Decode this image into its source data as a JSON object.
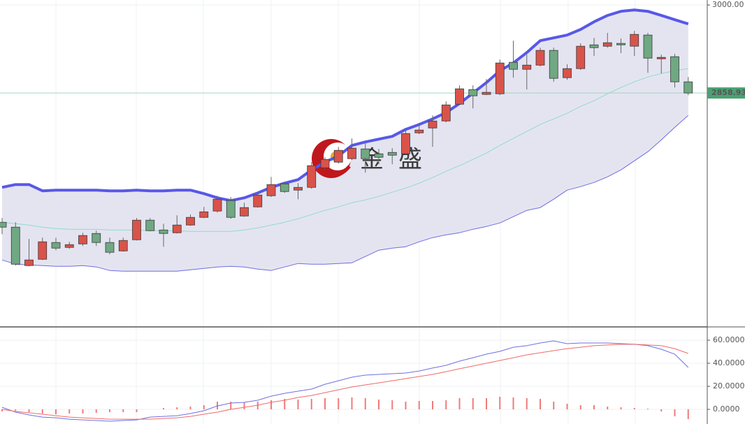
{
  "chart_data": [
    {
      "type": "candlestick",
      "ylim": [
        2485,
        3008
      ],
      "yticks": [
        {
          "value": 3000,
          "label": "3000.00"
        }
      ],
      "last_price": {
        "value": 2858.936,
        "label": "2858.936"
      },
      "watermark": [
        "金",
        "盛"
      ],
      "up_color": "#d9534a",
      "down_color": "#6fa882",
      "open": [
        2651.6,
        2643.8,
        2582.2,
        2592.3,
        2619.2,
        2611.3,
        2616.9,
        2633.7,
        2619.2,
        2605.7,
        2623.6,
        2655.0,
        2639.3,
        2634.8,
        2647.2,
        2659.5,
        2669.6,
        2686.4,
        2661.7,
        2676.3,
        2694.2,
        2713.2,
        2703.2,
        2707.6,
        2739.0,
        2748.0,
        2753.6,
        2769.2,
        2761.4,
        2763.6,
        2761.4,
        2795.0,
        2802.8,
        2814.0,
        2840.9,
        2864.4,
        2856.6,
        2857.7,
        2908.1,
        2896.9,
        2903.6,
        2927.2,
        2883.5,
        2898.0,
        2936.1,
        2933.9,
        2938.4,
        2933.9,
        2951.8,
        2913.7,
        2917.1,
        2876.8
      ],
      "high": [
        2658.4,
        2651.6,
        2624.8,
        2627.0,
        2627.0,
        2620.3,
        2634.8,
        2638.2,
        2627.0,
        2627.0,
        2658.4,
        2658.4,
        2649.4,
        2662.8,
        2664.0,
        2676.3,
        2694.2,
        2692.0,
        2683.0,
        2699.8,
        2724.4,
        2716.6,
        2714.4,
        2748.0,
        2755.8,
        2772.6,
        2786.0,
        2778.2,
        2769.2,
        2770.4,
        2799.5,
        2810.7,
        2823.0,
        2845.4,
        2871.2,
        2871.2,
        2881.2,
        2912.6,
        2942.8,
        2920.4,
        2931.6,
        2931.6,
        2904.8,
        2938.4,
        2947.3,
        2955.2,
        2946.2,
        2958.5,
        2955.2,
        2920.4,
        2921.6,
        2884.6
      ],
      "low": [
        2632.6,
        2582.2,
        2581.1,
        2591.2,
        2606.8,
        2609.1,
        2613.6,
        2613.6,
        2600.1,
        2604.6,
        2622.5,
        2637.1,
        2612.4,
        2633.7,
        2646.0,
        2658.4,
        2667.3,
        2657.2,
        2660.6,
        2675.2,
        2692.0,
        2698.7,
        2688.6,
        2705.4,
        2736.8,
        2745.7,
        2751.3,
        2731.2,
        2744.6,
        2744.6,
        2759.2,
        2792.8,
        2772.6,
        2811.8,
        2839.8,
        2834.2,
        2855.5,
        2855.5,
        2883.5,
        2864.4,
        2901.4,
        2876.8,
        2880.1,
        2895.8,
        2918.2,
        2931.6,
        2922.7,
        2918.2,
        2891.3,
        2890.2,
        2867.8,
        2855.5
      ],
      "close": [
        2643.8,
        2584.4,
        2591.2,
        2620.3,
        2610.2,
        2615.8,
        2630.4,
        2619.2,
        2603.5,
        2622.5,
        2655.0,
        2638.2,
        2633.7,
        2647.2,
        2659.5,
        2668.4,
        2688.6,
        2659.5,
        2675.2,
        2695.3,
        2712.1,
        2700.9,
        2707.6,
        2742.4,
        2752.4,
        2767.0,
        2770.4,
        2753.6,
        2755.8,
        2759.2,
        2793.9,
        2799.5,
        2814.0,
        2839.8,
        2865.6,
        2854.4,
        2860.0,
        2907.0,
        2896.9,
        2903.6,
        2927.2,
        2882.4,
        2898.0,
        2933.9,
        2931.6,
        2939.5,
        2936.1,
        2952.9,
        2914.8,
        2916.0,
        2876.8,
        2858.9
      ],
      "bands": {
        "fill": "#e4e4f1",
        "upper": {
          "color": "#5858e8",
          "values": [
            2707.6,
            2712.1,
            2712.1,
            2702.0,
            2703.2,
            2703.2,
            2703.2,
            2703.2,
            2702.0,
            2702.0,
            2703.2,
            2702.0,
            2702.0,
            2703.2,
            2703.2,
            2697.6,
            2690.8,
            2686.4,
            2690.8,
            2698.7,
            2707.6,
            2714.4,
            2720.0,
            2735.6,
            2748.0,
            2758.0,
            2774.8,
            2780.4,
            2784.9,
            2789.4,
            2800.6,
            2808.4,
            2817.4,
            2827.5,
            2842.0,
            2858.8,
            2875.6,
            2894.7,
            2907.0,
            2923.8,
            2942.8,
            2947.3,
            2951.8,
            2960.8,
            2973.1,
            2983.2,
            2989.9,
            2992.1,
            2989.9,
            2983.2,
            2976.4,
            2969.7
          ]
        },
        "middle": {
          "color": "#8fdcc6",
          "values": [
            2651.6,
            2649.4,
            2647.2,
            2643.8,
            2641.6,
            2640.4,
            2640.4,
            2640.4,
            2639.3,
            2639.3,
            2639.3,
            2638.2,
            2638.2,
            2638.2,
            2637.1,
            2637.1,
            2637.1,
            2637.1,
            2639.3,
            2642.7,
            2647.2,
            2651.6,
            2657.2,
            2664.0,
            2670.7,
            2676.3,
            2683.0,
            2687.5,
            2693.1,
            2699.8,
            2706.5,
            2714.4,
            2723.3,
            2733.4,
            2742.4,
            2752.4,
            2762.5,
            2774.8,
            2786.0,
            2797.2,
            2808.4,
            2817.4,
            2826.4,
            2837.6,
            2846.5,
            2857.7,
            2867.8,
            2876.8,
            2884.6,
            2890.2,
            2894.7,
            2898.0
          ]
        },
        "lower": {
          "color": "#6e6ee0",
          "values": [
            2591.2,
            2584.4,
            2583.3,
            2582.2,
            2581.1,
            2581.1,
            2582.2,
            2580.0,
            2574.4,
            2573.2,
            2573.2,
            2573.2,
            2573.2,
            2573.2,
            2575.5,
            2577.7,
            2580.0,
            2581.1,
            2580.0,
            2576.6,
            2574.4,
            2580.0,
            2585.6,
            2584.4,
            2584.4,
            2585.6,
            2586.7,
            2596.8,
            2606.8,
            2610.2,
            2612.4,
            2620.3,
            2627.0,
            2631.5,
            2634.8,
            2640.4,
            2644.9,
            2650.5,
            2660.6,
            2670.7,
            2675.2,
            2688.6,
            2703.2,
            2708.8,
            2715.5,
            2724.4,
            2735.6,
            2750.2,
            2764.8,
            2783.8,
            2804.0,
            2823.0
          ]
        }
      }
    },
    {
      "type": "macd",
      "ylim": [
        -12.7,
        70.3
      ],
      "yticks": [
        {
          "value": 60,
          "label": "60.0000"
        },
        {
          "value": 40,
          "label": "40.0000"
        },
        {
          "value": 20,
          "label": "20.0000"
        },
        {
          "value": 0,
          "label": "0.0000"
        }
      ],
      "series": [
        {
          "color": "#6f6fe0",
          "values": [
            1.8,
            -2.4,
            -4.8,
            -6.7,
            -7.3,
            -8.5,
            -9.1,
            -9.7,
            -10.3,
            -9.7,
            -9.1,
            -6.7,
            -6.1,
            -5.5,
            -3.6,
            -1.2,
            3.0,
            5.5,
            6.1,
            7.9,
            11.5,
            13.9,
            15.8,
            17.6,
            21.8,
            24.8,
            27.9,
            29.7,
            30.3,
            30.9,
            31.5,
            33.3,
            35.8,
            38.2,
            41.8,
            44.8,
            47.9,
            50.3,
            53.9,
            55.2,
            57.6,
            59.4,
            57.0,
            57.6,
            57.6,
            57.6,
            57.0,
            56.4,
            55.2,
            52.1,
            47.9,
            36.4
          ]
        },
        {
          "color": "#f06a6a",
          "values": [
            0,
            -1.8,
            -3.0,
            -4.2,
            -5.5,
            -6.7,
            -7.3,
            -7.9,
            -8.5,
            -8.5,
            -8.5,
            -8.5,
            -7.9,
            -7.3,
            -6.1,
            -4.2,
            -2.4,
            0,
            1.8,
            3.6,
            6.1,
            7.9,
            10.3,
            12.1,
            14.5,
            17.0,
            19.4,
            21.2,
            23.0,
            24.8,
            26.7,
            28.5,
            30.3,
            32.7,
            35.2,
            37.6,
            40.0,
            42.4,
            44.8,
            47.3,
            49.1,
            50.9,
            52.7,
            53.9,
            55.2,
            55.8,
            56.4,
            56.4,
            55.8,
            55.2,
            52.7,
            48.5
          ]
        }
      ],
      "histogram": {
        "color": "#f07a7a",
        "values": [
          -1.82,
          -1.21,
          -2.42,
          -3.64,
          -4.24,
          -3.64,
          -3.64,
          -3.03,
          -2.42,
          -2.42,
          -2.42,
          0,
          1.21,
          1.82,
          2.42,
          3.64,
          6.67,
          6.67,
          6.06,
          6.67,
          7.88,
          9.09,
          8.48,
          9.09,
          9.7,
          9.7,
          10.3,
          9.7,
          8.48,
          7.88,
          6.67,
          7.27,
          7.27,
          7.88,
          9.7,
          9.7,
          9.7,
          10.91,
          10.3,
          9.7,
          9.09,
          6.67,
          4.85,
          3.64,
          3.64,
          2.42,
          1.82,
          1.21,
          0.61,
          -1.82,
          -6.06,
          -8.48
        ]
      }
    }
  ]
}
